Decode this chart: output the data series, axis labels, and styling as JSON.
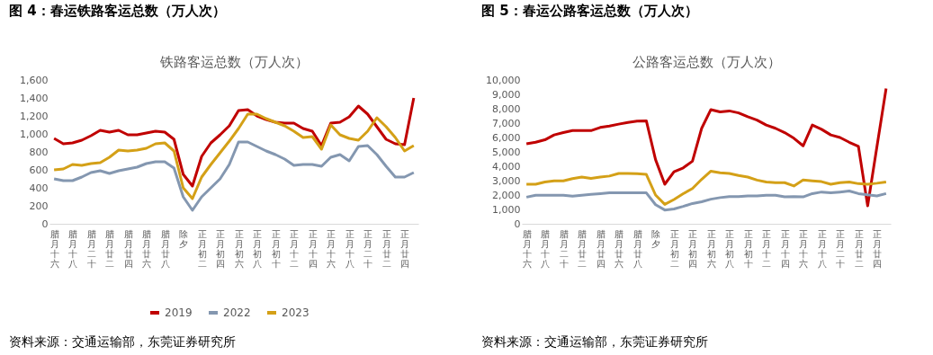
{
  "chart_data": [
    {
      "type": "line",
      "title": "图 4：春运铁路客运总数（万人次）",
      "subtitle": "铁路客运总数（万人次）",
      "categories": [
        "腊月十六",
        null,
        "腊月十八",
        null,
        "腊月二十",
        null,
        "腊月廿二",
        null,
        "腊月廿四",
        null,
        "腊月廿六",
        null,
        "腊月廿八",
        null,
        "除夕",
        null,
        "正月初二",
        null,
        "正月初四",
        null,
        "正月初六",
        null,
        "正月初八",
        null,
        "正月初十",
        null,
        "正月十二",
        null,
        "正月十四",
        null,
        "正月十六",
        null,
        "正月十八",
        null,
        "正月二十",
        null,
        "正月廿二",
        null,
        "正月廿四",
        null
      ],
      "series": [
        {
          "name": "2019",
          "color": "#c00000",
          "values": [
            950,
            890,
            900,
            930,
            980,
            1040,
            1020,
            1040,
            990,
            990,
            1010,
            1030,
            1020,
            940,
            550,
            420,
            750,
            900,
            990,
            1090,
            1260,
            1270,
            1200,
            1160,
            1130,
            1120,
            1120,
            1060,
            1030,
            870,
            1120,
            1130,
            1190,
            1310,
            1220,
            1080,
            940,
            890,
            880,
            1400
          ]
        },
        {
          "name": "2022",
          "color": "#8497b0",
          "values": [
            500,
            480,
            480,
            520,
            570,
            590,
            560,
            590,
            610,
            630,
            670,
            690,
            690,
            620,
            300,
            150,
            300,
            400,
            500,
            660,
            910,
            910,
            860,
            810,
            770,
            720,
            650,
            660,
            660,
            640,
            740,
            770,
            700,
            860,
            870,
            770,
            640,
            520,
            520,
            570
          ]
        },
        {
          "name": "2023",
          "color": "#d4a017",
          "values": [
            600,
            610,
            660,
            650,
            670,
            680,
            740,
            820,
            810,
            820,
            840,
            890,
            900,
            810,
            400,
            280,
            520,
            660,
            790,
            920,
            1060,
            1220,
            1220,
            1170,
            1130,
            1090,
            1030,
            960,
            970,
            830,
            1100,
            990,
            950,
            930,
            1030,
            1180,
            1080,
            960,
            810,
            870
          ]
        }
      ],
      "ylim": [
        0,
        1600
      ],
      "yticks": [
        0,
        200,
        400,
        600,
        800,
        {
          "value": 1000,
          "label": "1,000"
        },
        {
          "value": 1200,
          "label": "1,200"
        },
        {
          "value": 1400,
          "label": "1,400"
        },
        {
          "value": 1600,
          "label": "1,600"
        }
      ],
      "legend": "bottom",
      "grid": false,
      "annotations": [
        "资料来源：交通运输部，东莞证券研究所"
      ]
    },
    {
      "type": "line",
      "title": "图 5：春运公路客运总数（万人次）",
      "subtitle": "公路客运总数（万人次）",
      "categories": [
        "腊月十六",
        null,
        "腊月十八",
        null,
        "腊月二十",
        null,
        "腊月廿二",
        null,
        "腊月廿四",
        null,
        "腊月廿六",
        null,
        "腊月廿八",
        null,
        "除夕",
        null,
        "正月初二",
        null,
        "正月初四",
        null,
        "正月初六",
        null,
        "正月初八",
        null,
        "正月初十",
        null,
        "正月十二",
        null,
        "正月十四",
        null,
        "正月十六",
        null,
        "正月十八",
        null,
        "正月二十",
        null,
        "正月廿二",
        null,
        "正月廿四",
        null
      ],
      "series": [
        {
          "name": "2019",
          "color": "#c00000",
          "values": [
            5560,
            5670,
            5840,
            6180,
            6340,
            6480,
            6480,
            6480,
            6700,
            6800,
            6930,
            7050,
            7140,
            7160,
            4460,
            2750,
            3620,
            3890,
            4350,
            6640,
            7940,
            7780,
            7850,
            7710,
            7440,
            7210,
            6870,
            6640,
            6340,
            5950,
            5420,
            6870,
            6570,
            6180,
            6000,
            5670,
            5380,
            1250,
            5350,
            9400
          ]
        },
        {
          "name": "2022",
          "color": "#8497b0",
          "values": [
            1850,
            1990,
            1990,
            1990,
            1990,
            1920,
            1990,
            2040,
            2100,
            2150,
            2150,
            2150,
            2150,
            2150,
            1330,
            960,
            1030,
            1210,
            1410,
            1530,
            1710,
            1820,
            1890,
            1890,
            1940,
            1940,
            1990,
            1990,
            1870,
            1890,
            1870,
            2100,
            2210,
            2150,
            2210,
            2280,
            2100,
            2010,
            1940,
            2100
          ]
        },
        {
          "name": "2023",
          "color": "#d4a017",
          "values": [
            2750,
            2750,
            2910,
            2980,
            2980,
            3140,
            3250,
            3160,
            3250,
            3320,
            3500,
            3500,
            3480,
            3430,
            2000,
            1350,
            1690,
            2090,
            2450,
            3090,
            3660,
            3550,
            3500,
            3360,
            3250,
            3040,
            2910,
            2860,
            2860,
            2630,
            3040,
            2980,
            2930,
            2750,
            2860,
            2910,
            2790,
            2750,
            2820,
            2910
          ]
        }
      ],
      "ylim": [
        0,
        10000
      ],
      "yticks": [
        0,
        {
          "value": 1000,
          "label": "1,000"
        },
        {
          "value": 2000,
          "label": "2,000"
        },
        {
          "value": 3000,
          "label": "3,000"
        },
        {
          "value": 4000,
          "label": "4,000"
        },
        {
          "value": 5000,
          "label": "5,000"
        },
        {
          "value": 6000,
          "label": "6,000"
        },
        {
          "value": 7000,
          "label": "7,000"
        },
        {
          "value": 8000,
          "label": "8,000"
        },
        {
          "value": 9000,
          "label": "9,000"
        },
        {
          "value": 10000,
          "label": "10,000"
        }
      ],
      "legend": "bottom",
      "grid": false,
      "annotations": [
        "资料来源：交通运输部，东莞证券研究所"
      ]
    }
  ]
}
